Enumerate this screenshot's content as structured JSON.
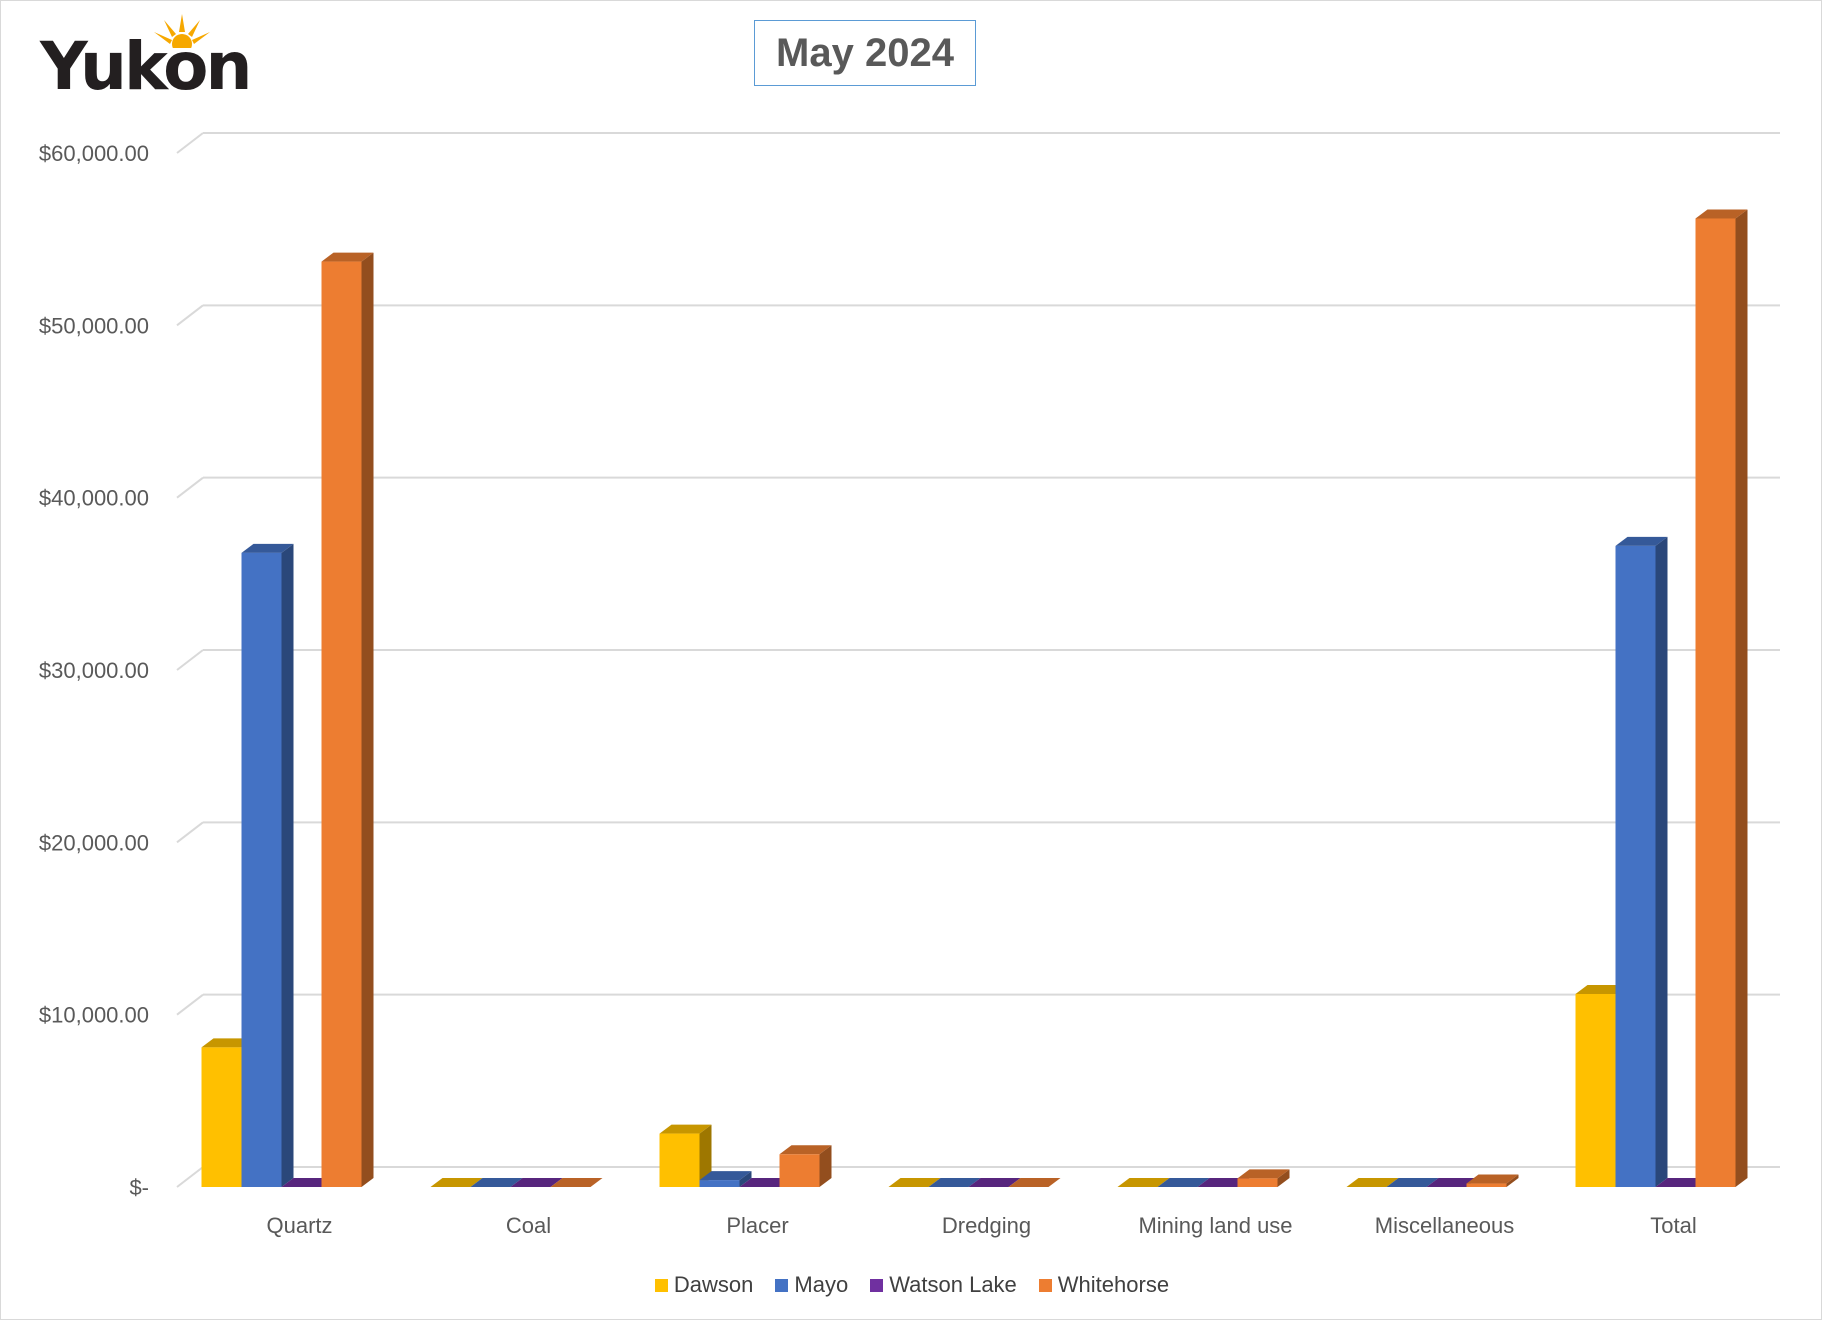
{
  "logo": {
    "text": "Yukon"
  },
  "chart_data": {
    "type": "bar",
    "title": "May 2024",
    "categories": [
      "Quartz",
      "Coal",
      "Placer",
      "Dredging",
      "Mining land use",
      "Miscellaneous",
      "Total"
    ],
    "series": [
      {
        "name": "Dawson",
        "color": "#ffc000",
        "values": [
          8100,
          0,
          3100,
          0,
          0,
          0,
          11200
        ]
      },
      {
        "name": "Mayo",
        "color": "#4472c4",
        "values": [
          36800,
          0,
          400,
          0,
          0,
          0,
          37200
        ]
      },
      {
        "name": "Watson Lake",
        "color": "#7030a0",
        "values": [
          0,
          0,
          0,
          0,
          0,
          0,
          0
        ]
      },
      {
        "name": "Whitehorse",
        "color": "#ed7d31",
        "values": [
          53700,
          0,
          1900,
          0,
          500,
          200,
          56200
        ]
      }
    ],
    "y_ticks": [
      "$-",
      "$10,000.00",
      "$20,000.00",
      "$30,000.00",
      "$40,000.00",
      "$50,000.00",
      "$60,000.00"
    ],
    "ylim": [
      0,
      60000
    ],
    "grid": true,
    "legend_position": "bottom"
  }
}
